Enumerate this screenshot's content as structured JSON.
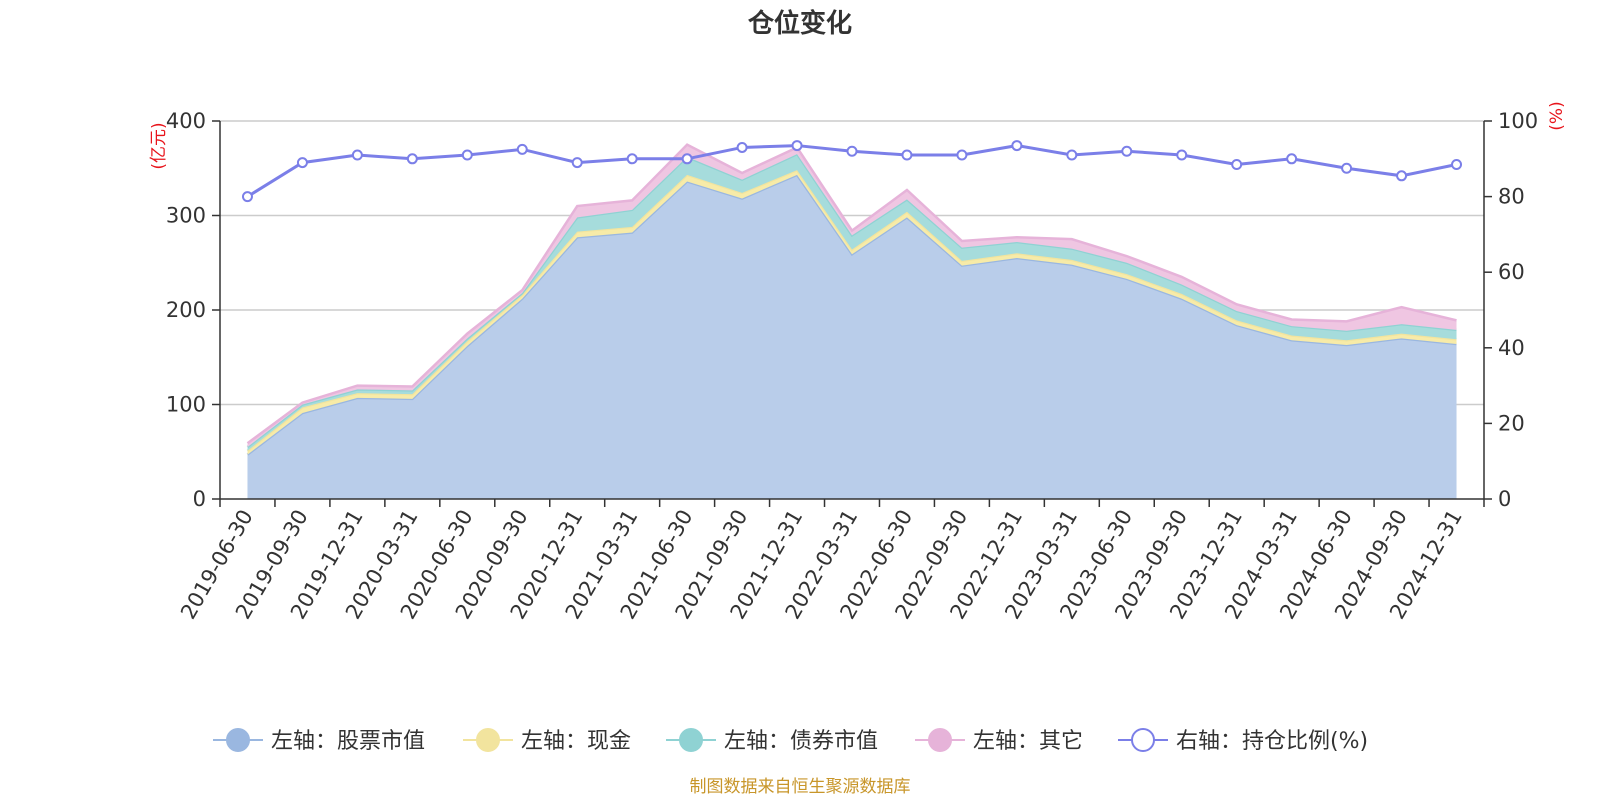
{
  "chart_data": {
    "type": "area",
    "title": "仓位变化",
    "left_unit": "(亿元)",
    "right_unit": "(%)",
    "categories": [
      "2019-06-30",
      "2019-09-30",
      "2019-12-31",
      "2020-03-31",
      "2020-06-30",
      "2020-09-30",
      "2020-12-31",
      "2021-03-31",
      "2021-06-30",
      "2021-09-30",
      "2021-12-31",
      "2022-03-31",
      "2022-06-30",
      "2022-09-30",
      "2022-12-31",
      "2023-03-31",
      "2023-06-30",
      "2023-09-30",
      "2023-12-31",
      "2024-03-31",
      "2024-06-30",
      "2024-09-30",
      "2024-12-31"
    ],
    "left_axis": {
      "min": 0,
      "max": 400,
      "ticks": [
        0,
        100,
        200,
        300,
        400
      ],
      "tick_labels": [
        "0",
        "100",
        "200",
        "300",
        "400"
      ]
    },
    "right_axis": {
      "min": 0,
      "max": 100,
      "ticks": [
        0,
        20,
        40,
        60,
        80,
        100
      ],
      "tick_labels": [
        "0",
        "20",
        "40",
        "60",
        "80",
        "100"
      ]
    },
    "stacked_series": [
      {
        "name": "左轴：股票市值",
        "color": "#9ab7e0",
        "fill": "#b9cdea",
        "values": [
          47,
          91,
          107,
          106,
          162,
          212,
          277,
          282,
          336,
          318,
          343,
          259,
          298,
          247,
          255,
          248,
          233,
          212,
          184,
          168,
          163,
          170,
          164
        ]
      },
      {
        "name": "左轴：现金",
        "color": "#f2e49e",
        "fill": "#f7eba8",
        "values": [
          4,
          6,
          5,
          5,
          5,
          4,
          6,
          6,
          7,
          6,
          5,
          5,
          6,
          5,
          5,
          5,
          5,
          5,
          5,
          5,
          5,
          5,
          5
        ]
      },
      {
        "name": "左轴：债券市值",
        "color": "#8fd2d3",
        "fill": "#a6dcdc",
        "values": [
          4,
          3,
          4,
          4,
          3,
          2,
          15,
          18,
          19,
          14,
          17,
          15,
          13,
          14,
          12,
          12,
          12,
          10,
          10,
          10,
          10,
          10,
          10
        ]
      },
      {
        "name": "左轴：其它",
        "color": "#e6b3d9",
        "fill": "#efc6e2",
        "values": [
          4,
          2,
          4,
          4,
          5,
          3,
          12,
          10,
          13,
          7,
          7,
          5,
          10,
          7,
          5,
          10,
          7,
          8,
          7,
          7,
          10,
          18,
          10
        ]
      }
    ],
    "line_series": {
      "name": "右轴：持仓比例(%)",
      "color": "#7b7fe8",
      "values": [
        80,
        89,
        91,
        90,
        91,
        92.5,
        89,
        90,
        90,
        93,
        93.5,
        92,
        91,
        91,
        93.5,
        91,
        92,
        91,
        88.5,
        90,
        87.5,
        85.5,
        88.5
      ]
    },
    "legend": [
      "左轴：股票市值",
      "左轴：现金",
      "左轴：债券市值",
      "左轴：其它",
      "右轴：持仓比例(%)"
    ],
    "source_note": "制图数据来自恒生聚源数据库"
  }
}
